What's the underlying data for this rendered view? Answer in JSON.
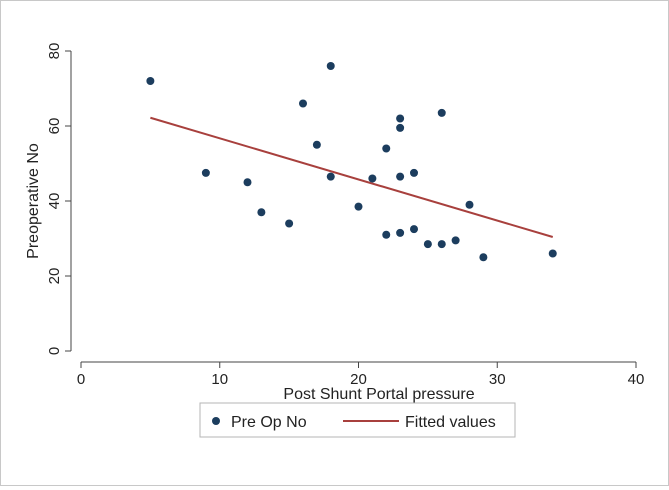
{
  "chart_data": {
    "type": "scatter",
    "xlabel": "Post Shunt Portal pressure",
    "ylabel": "Preoperative No",
    "xlim": [
      0,
      40
    ],
    "ylim": [
      0,
      80
    ],
    "xticks": [
      0,
      10,
      20,
      30,
      40
    ],
    "yticks": [
      0,
      20,
      40,
      60,
      80
    ],
    "grid": false,
    "legend_position": "bottom",
    "series": [
      {
        "name": "Pre Op No",
        "kind": "scatter",
        "color": "#1c3d5e",
        "x": [
          5,
          9,
          12,
          13,
          15,
          16,
          17,
          18,
          18,
          20,
          21,
          22,
          22,
          23,
          23,
          23,
          23,
          24,
          24,
          25,
          26,
          26,
          27,
          28,
          29,
          34
        ],
        "y": [
          72,
          47.5,
          45,
          37,
          34,
          66,
          55,
          76,
          46.5,
          38.5,
          46,
          54,
          31,
          62,
          59.5,
          46.5,
          31.5,
          47.5,
          32.5,
          28.5,
          63.5,
          28.5,
          29.5,
          39,
          25,
          26
        ]
      },
      {
        "name": "Fitted values",
        "kind": "line",
        "color": "#a8403d",
        "x": [
          5,
          34
        ],
        "y": [
          62.2,
          30.4
        ]
      }
    ]
  }
}
